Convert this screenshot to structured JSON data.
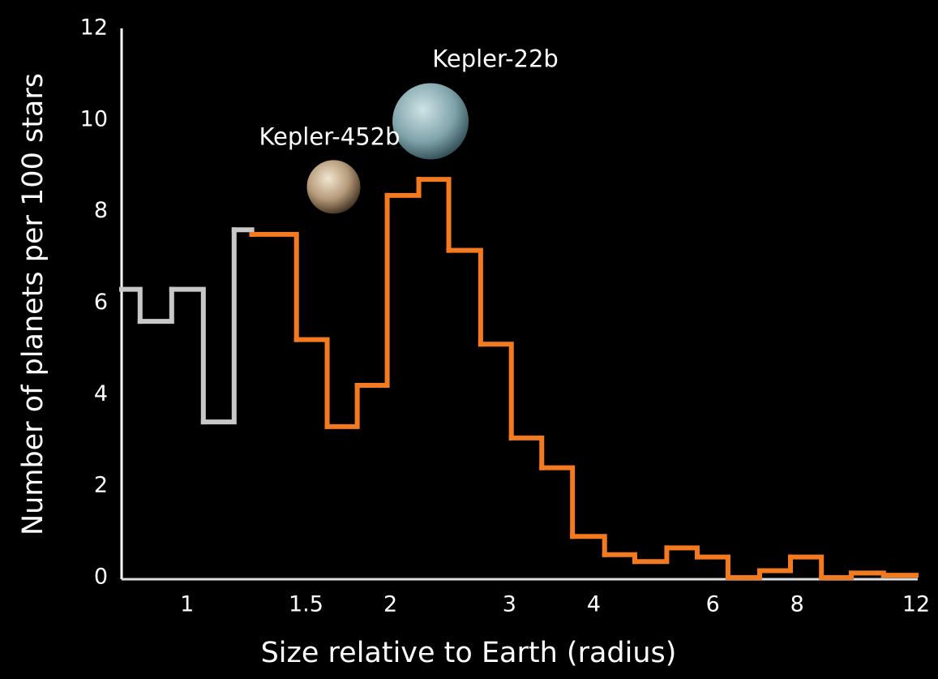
{
  "chart_data": {
    "type": "step-histogram",
    "xlabel": "Size relative to Earth (radius)",
    "ylabel": "Number of planets per 100 stars",
    "xscale": "log",
    "xlim": [
      0.8,
      12
    ],
    "ylim": [
      0,
      12
    ],
    "xticks": [
      1,
      1.5,
      2,
      3,
      4,
      6,
      8,
      12
    ],
    "yticks": [
      0,
      2,
      4,
      6,
      8,
      10,
      12
    ],
    "annotations": [
      {
        "text": "Kepler-452b",
        "x": 1.25,
        "y": 9.6
      },
      {
        "text": "Kepler-22b",
        "x": 2.2,
        "y": 11.3
      }
    ],
    "series": [
      {
        "color": "#c8c8c8",
        "bins": [
          0.8,
          0.852,
          0.949,
          1.057,
          1.174,
          1.247
        ],
        "values": [
          6.3,
          5.6,
          6.3,
          3.4,
          7.6
        ]
      },
      {
        "color": "#f47a20",
        "bins": [
          1.247,
          1.452,
          1.612,
          1.786,
          1.978,
          2.203,
          2.44,
          2.72,
          3.02,
          3.35,
          3.72,
          4.15,
          4.6,
          5.13,
          5.69,
          6.32,
          7.04,
          7.82,
          8.69,
          9.62,
          10.74,
          12
        ],
        "values": [
          7.5,
          5.2,
          3.3,
          4.2,
          8.35,
          8.7,
          7.15,
          5.1,
          3.05,
          2.4,
          0.9,
          0.5,
          0.35,
          0.65,
          0.45,
          0,
          0.15,
          0.45,
          0,
          0.1,
          0.05
        ]
      }
    ]
  }
}
